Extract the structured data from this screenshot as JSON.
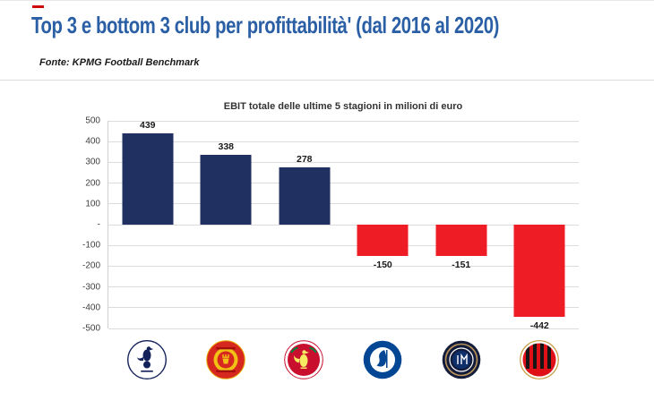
{
  "header": {
    "title": "Top 3 e bottom 3 club per profittabilità' (dal 2016 al 2020)",
    "source": "Fonte: KPMG Football Benchmark"
  },
  "chart_data": {
    "type": "bar",
    "title": "EBIT totale delle ultime 5 stagioni in milioni di euro",
    "categories": [
      "Tottenham Hotspur",
      "Manchester United",
      "Liverpool",
      "Chelsea",
      "Inter",
      "AC Milan"
    ],
    "values": [
      439,
      338,
      278,
      -150,
      -151,
      -442
    ],
    "labels": [
      "439",
      "338",
      "278",
      "-150",
      "-151",
      "-442"
    ],
    "ylim": [
      -500,
      500
    ],
    "ytick_labels": [
      "500",
      "400",
      "300",
      "200",
      "100",
      "-",
      "-100",
      "-200",
      "-300",
      "-400",
      "-500"
    ],
    "grid": true,
    "legend": "none",
    "positive_color": "#1f3061",
    "negative_color": "#ee1c25"
  },
  "accents": {
    "title_color": "#2b5fa5",
    "red_tick_color": "#cf0a0a"
  }
}
